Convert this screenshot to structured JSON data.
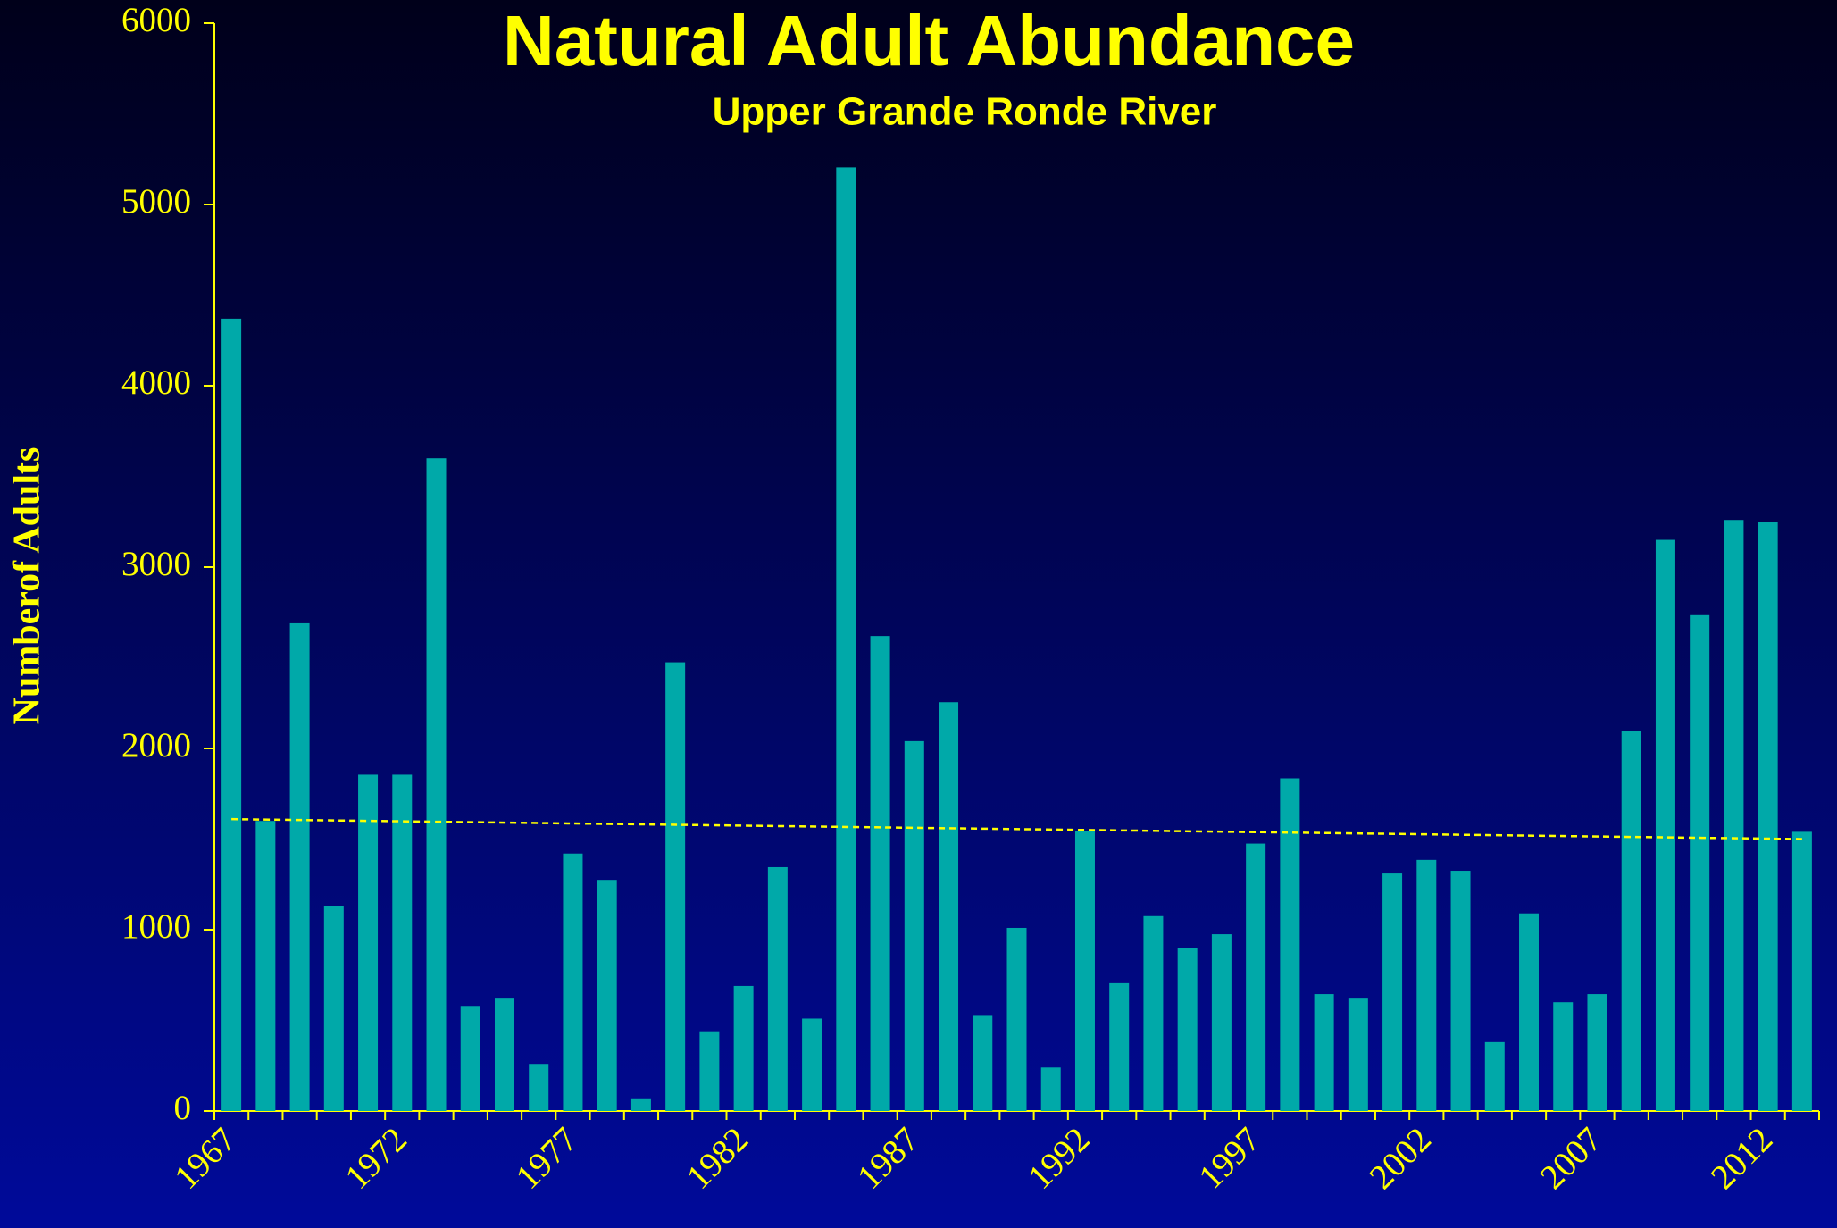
{
  "chart_data": {
    "type": "bar",
    "title": "Natural Adult Abundance",
    "subtitle": "Upper Grande Ronde River",
    "y_label": "Numberof Adults",
    "categories": [
      "1967",
      null,
      null,
      null,
      null,
      "1972",
      null,
      null,
      null,
      null,
      "1977",
      null,
      null,
      null,
      null,
      "1982",
      null,
      null,
      null,
      null,
      "1987",
      null,
      null,
      null,
      null,
      "1992",
      null,
      null,
      null,
      null,
      "1997",
      null,
      null,
      null,
      null,
      "2002",
      null,
      null,
      null,
      null,
      "2007",
      null,
      null,
      null,
      null,
      "2012",
      null
    ],
    "values": [
      4370,
      1600,
      2690,
      1130,
      1855,
      1855,
      3600,
      580,
      620,
      260,
      1420,
      1275,
      70,
      2475,
      440,
      690,
      1345,
      510,
      5205,
      2620,
      2040,
      2255,
      525,
      1010,
      240,
      1545,
      705,
      1075,
      900,
      975,
      1475,
      1835,
      645,
      620,
      1310,
      1385,
      1325,
      380,
      1090,
      600,
      645,
      2095,
      3150,
      2735,
      3260,
      3250,
      1540
    ],
    "color": "#00a9a9",
    "trendline": {
      "start": 1610,
      "end": 1500,
      "color": "#ffff00"
    },
    "ylim": [
      0,
      6000
    ],
    "yticks": [
      0,
      1000,
      2000,
      3000,
      4000,
      5000,
      6000
    ],
    "grid": false
  }
}
